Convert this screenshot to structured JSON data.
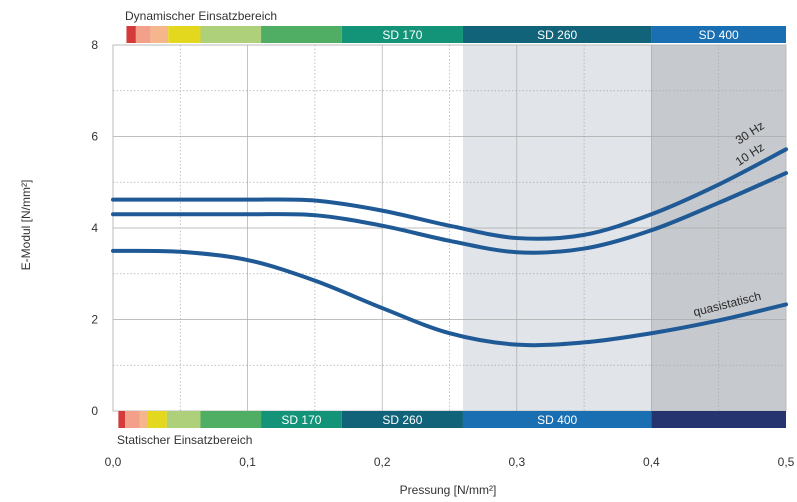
{
  "chart_data": {
    "type": "line",
    "title": "",
    "xlabel": "Pressung [N/mm²]",
    "ylabel": "E-Modul [N/mm²]",
    "xlim": [
      0,
      0.5
    ],
    "ylim": [
      0,
      8
    ],
    "x_ticks": [
      "0,0",
      "0,1",
      "0,2",
      "0,3",
      "0,4",
      "0,5"
    ],
    "y_ticks": [
      "0",
      "2",
      "4",
      "6",
      "8"
    ],
    "grid": true,
    "series": [
      {
        "name": "30 Hz",
        "color": "#1f5a96",
        "x": [
          0.0,
          0.05,
          0.1,
          0.15,
          0.2,
          0.25,
          0.3,
          0.35,
          0.4,
          0.45,
          0.5
        ],
        "y": [
          4.62,
          4.62,
          4.62,
          4.6,
          4.38,
          4.05,
          3.78,
          3.85,
          4.3,
          4.95,
          5.72
        ]
      },
      {
        "name": "10 Hz",
        "color": "#1f5a96",
        "x": [
          0.0,
          0.05,
          0.1,
          0.15,
          0.2,
          0.25,
          0.3,
          0.35,
          0.4,
          0.45,
          0.5
        ],
        "y": [
          4.3,
          4.3,
          4.3,
          4.28,
          4.05,
          3.72,
          3.47,
          3.55,
          3.95,
          4.55,
          5.2
        ]
      },
      {
        "name": "quasistatisch",
        "color": "#1f5a96",
        "x": [
          0.0,
          0.05,
          0.1,
          0.15,
          0.2,
          0.25,
          0.3,
          0.35,
          0.4,
          0.45,
          0.5
        ],
        "y": [
          3.5,
          3.48,
          3.3,
          2.85,
          2.25,
          1.7,
          1.45,
          1.5,
          1.7,
          1.98,
          2.33
        ]
      }
    ],
    "regions": [
      {
        "x0": 0.26,
        "x1": 0.4,
        "color": "#e1e4e8"
      },
      {
        "x0": 0.4,
        "x1": 0.5,
        "color": "#c6c9cd"
      }
    ],
    "top_band": {
      "label": "Dynamischer Einsatzbereich",
      "segments": [
        {
          "x0": 0.01,
          "x1": 0.017,
          "color": "#d43a3a",
          "label": ""
        },
        {
          "x0": 0.017,
          "x1": 0.028,
          "color": "#f2a08a",
          "label": ""
        },
        {
          "x0": 0.028,
          "x1": 0.041,
          "color": "#f4b68a",
          "label": ""
        },
        {
          "x0": 0.041,
          "x1": 0.065,
          "color": "#e4d81e",
          "label": ""
        },
        {
          "x0": 0.065,
          "x1": 0.11,
          "color": "#aed07a",
          "label": ""
        },
        {
          "x0": 0.11,
          "x1": 0.17,
          "color": "#4fae64",
          "label": ""
        },
        {
          "x0": 0.17,
          "x1": 0.26,
          "color": "#139478",
          "label": "SD 170"
        },
        {
          "x0": 0.26,
          "x1": 0.4,
          "color": "#11637a",
          "label": "SD 260"
        },
        {
          "x0": 0.4,
          "x1": 0.5,
          "color": "#1a6fb3",
          "label": "SD 400"
        }
      ]
    },
    "bottom_band": {
      "label": "Statischer Einsatzbereich",
      "segments": [
        {
          "x0": 0.004,
          "x1": 0.009,
          "color": "#d43a3a",
          "label": ""
        },
        {
          "x0": 0.009,
          "x1": 0.02,
          "color": "#f2a08a",
          "label": ""
        },
        {
          "x0": 0.02,
          "x1": 0.026,
          "color": "#f4b68a",
          "label": ""
        },
        {
          "x0": 0.026,
          "x1": 0.04,
          "color": "#e4d81e",
          "label": ""
        },
        {
          "x0": 0.04,
          "x1": 0.065,
          "color": "#aed07a",
          "label": ""
        },
        {
          "x0": 0.065,
          "x1": 0.11,
          "color": "#4fae64",
          "label": ""
        },
        {
          "x0": 0.11,
          "x1": 0.17,
          "color": "#139478",
          "label": "SD 170"
        },
        {
          "x0": 0.17,
          "x1": 0.26,
          "color": "#11637a",
          "label": "SD 260"
        },
        {
          "x0": 0.26,
          "x1": 0.4,
          "color": "#1a6fb3",
          "label": "SD 400"
        },
        {
          "x0": 0.4,
          "x1": 0.5,
          "color": "#25346e",
          "label": ""
        }
      ]
    }
  }
}
